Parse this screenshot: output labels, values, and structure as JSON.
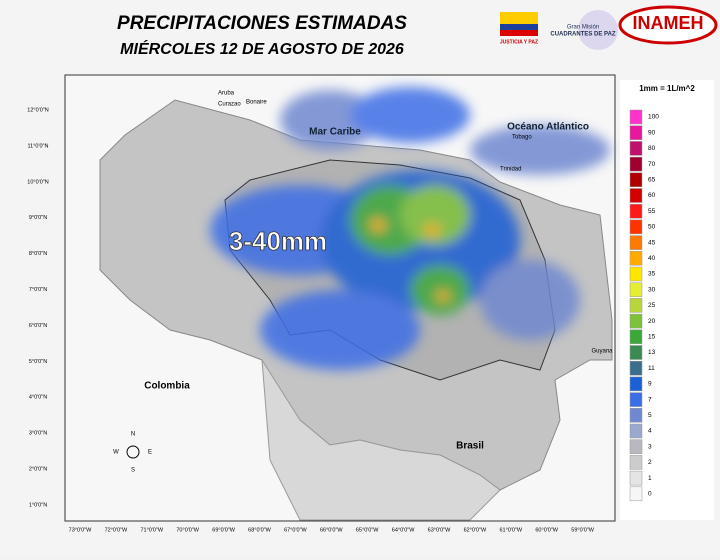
{
  "header": {
    "title": "PRECIPITACIONES ESTIMADAS",
    "subtitle": "MIÉRCOLES 12 DE AGOSTO DE 2026",
    "logos": [
      "JUSTICIA Y PAZ",
      "Gran Misión",
      "CUADRANTES DE PAZ",
      "INAMEH"
    ]
  },
  "legend": {
    "unit": "1mm = 1L/m^2",
    "items": [
      {
        "label": "100",
        "color": "#ff33cc"
      },
      {
        "label": "90",
        "color": "#e6199e"
      },
      {
        "label": "80",
        "color": "#c0106e"
      },
      {
        "label": "70",
        "color": "#a00030"
      },
      {
        "label": "65",
        "color": "#b00000"
      },
      {
        "label": "60",
        "color": "#d40000"
      },
      {
        "label": "55",
        "color": "#ff1a1a"
      },
      {
        "label": "50",
        "color": "#ff3300"
      },
      {
        "label": "45",
        "color": "#ff7a00"
      },
      {
        "label": "40",
        "color": "#ffaa00"
      },
      {
        "label": "35",
        "color": "#ffe600"
      },
      {
        "label": "30",
        "color": "#e6ee33"
      },
      {
        "label": "25",
        "color": "#b8d63c"
      },
      {
        "label": "20",
        "color": "#7ec23a"
      },
      {
        "label": "15",
        "color": "#3da83a"
      },
      {
        "label": "13",
        "color": "#3a8a52"
      },
      {
        "label": "11",
        "color": "#3a6e8c"
      },
      {
        "label": "9",
        "color": "#1c5fd6"
      },
      {
        "label": "7",
        "color": "#3c6ee6"
      },
      {
        "label": "5",
        "color": "#7088d0"
      },
      {
        "label": "4",
        "color": "#9aa8d0"
      },
      {
        "label": "3",
        "color": "#b8b8c0"
      },
      {
        "label": "2",
        "color": "#cccccc"
      },
      {
        "label": "1",
        "color": "#e4e4e4"
      },
      {
        "label": "0",
        "color": "#f6f6f6"
      }
    ]
  },
  "map": {
    "range_label": "3-40mm",
    "labels": {
      "sea": "Mar Caribe",
      "ocean": "Océano Atlántico",
      "colombia": "Colombia",
      "brasil": "Brasil",
      "guyana": "Guyana",
      "aruba": "Aruba",
      "curazao": "Curazao",
      "bonaire": "Bonaire",
      "trinidad": "Trinidad",
      "tobago": "Tobago"
    },
    "compass": {
      "n": "N",
      "s": "S",
      "e": "E",
      "w": "W"
    },
    "lat_ticks": [
      "12°0'0\"N",
      "11°0'0\"N",
      "10°0'0\"N",
      "9°0'0\"N",
      "8°0'0\"N",
      "7°0'0\"N",
      "6°0'0\"N",
      "5°0'0\"N",
      "4°0'0\"N",
      "3°0'0\"N",
      "2°0'0\"N",
      "1°0'0\"N"
    ],
    "lon_ticks": [
      "73°0'0\"W",
      "72°0'0\"W",
      "71°0'0\"W",
      "70°0'0\"W",
      "69°0'0\"W",
      "68°0'0\"W",
      "67°0'0\"W",
      "66°0'0\"W",
      "65°0'0\"W",
      "64°0'0\"W",
      "63°0'0\"W",
      "62°0'0\"W",
      "61°0'0\"W",
      "60°0'0\"W",
      "59°0'0\"W"
    ]
  }
}
